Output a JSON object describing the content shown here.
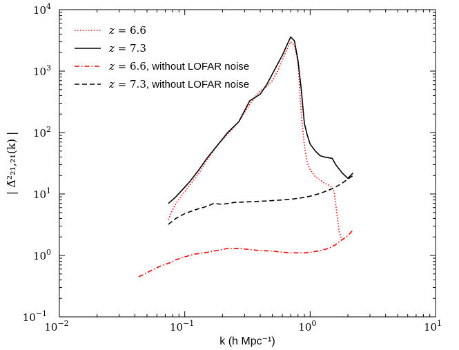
{
  "chart_data": {
    "type": "line",
    "title": "",
    "xlabel": "k (h Mpc⁻¹)",
    "ylabel": "| Δ̃²₂₁,₂₁(k) |",
    "xscale": "log",
    "yscale": "log",
    "xlim": [
      0.01,
      10
    ],
    "ylim": [
      0.1,
      10000
    ],
    "x_ticks": [
      {
        "value": 0.01,
        "label": "10⁻²"
      },
      {
        "value": 0.1,
        "label": "10⁻¹"
      },
      {
        "value": 1,
        "label": "10⁰"
      },
      {
        "value": 10,
        "label": "10¹"
      }
    ],
    "y_ticks": [
      {
        "value": 0.1,
        "label": "10⁻¹"
      },
      {
        "value": 1,
        "label": "10⁰"
      },
      {
        "value": 10,
        "label": "10¹"
      },
      {
        "value": 100,
        "label": "10²"
      },
      {
        "value": 1000,
        "label": "10³"
      },
      {
        "value": 10000,
        "label": "10⁴"
      }
    ],
    "grid": false,
    "legend_position": "top-left",
    "series": [
      {
        "name": "z = 6.6",
        "legend_math": "z = 6.6",
        "legend_suffix": "",
        "color": "#ff0000",
        "style": "dotted",
        "x": [
          0.074,
          0.078,
          0.085,
          0.095,
          0.11,
          0.13,
          0.15,
          0.18,
          0.22,
          0.27,
          0.33,
          0.4,
          0.45,
          0.5,
          0.55,
          0.6,
          0.65,
          0.7,
          0.75,
          0.8,
          0.85,
          0.9,
          0.95,
          1.0,
          1.1,
          1.2,
          1.3,
          1.4,
          1.5,
          1.55,
          1.6,
          1.65,
          1.7,
          1.8
        ],
        "y": [
          3.8,
          5.0,
          7.0,
          9.5,
          14,
          22,
          35,
          60,
          95,
          150,
          290,
          480,
          560,
          700,
          1000,
          1500,
          2200,
          3000,
          2600,
          1400,
          200,
          60,
          32,
          25,
          19,
          17,
          15,
          14,
          13,
          11,
          7,
          4,
          2.5,
          1.7
        ]
      },
      {
        "name": "z = 7.3",
        "legend_math": "z = 7.3",
        "legend_suffix": "",
        "color": "#000000",
        "style": "solid",
        "x": [
          0.074,
          0.085,
          0.095,
          0.11,
          0.13,
          0.15,
          0.18,
          0.22,
          0.27,
          0.33,
          0.4,
          0.45,
          0.5,
          0.55,
          0.6,
          0.65,
          0.7,
          0.75,
          0.8,
          0.85,
          0.9,
          0.95,
          1.0,
          1.1,
          1.2,
          1.3,
          1.5,
          1.6,
          1.8,
          2.0,
          2.2
        ],
        "y": [
          7.0,
          9.0,
          11.5,
          16,
          25,
          38,
          60,
          100,
          150,
          330,
          420,
          600,
          900,
          1300,
          1800,
          2600,
          3600,
          3100,
          1500,
          500,
          140,
          90,
          65,
          50,
          42,
          40,
          38,
          30,
          22,
          18,
          22
        ]
      },
      {
        "name": "z = 6.6, without LOFAR noise",
        "legend_math": "z = 6.6",
        "legend_suffix": ", without LOFAR noise",
        "color": "#ff0000",
        "style": "dashdot",
        "x": [
          0.043,
          0.048,
          0.055,
          0.065,
          0.075,
          0.085,
          0.1,
          0.12,
          0.15,
          0.18,
          0.22,
          0.27,
          0.33,
          0.4,
          0.5,
          0.6,
          0.7,
          0.8,
          0.9,
          1.0,
          1.2,
          1.4,
          1.6,
          1.8,
          2.0,
          2.2
        ],
        "y": [
          0.45,
          0.5,
          0.58,
          0.68,
          0.75,
          0.85,
          0.95,
          1.05,
          1.12,
          1.2,
          1.3,
          1.3,
          1.25,
          1.2,
          1.18,
          1.13,
          1.1,
          1.1,
          1.1,
          1.12,
          1.2,
          1.3,
          1.5,
          1.8,
          2.1,
          2.6
        ]
      },
      {
        "name": "z = 7.3, without LOFAR noise",
        "legend_math": "z = 7.3",
        "legend_suffix": ", without LOFAR noise",
        "color": "#000000",
        "style": "dashed",
        "x": [
          0.074,
          0.085,
          0.1,
          0.12,
          0.15,
          0.17,
          0.2,
          0.25,
          0.3,
          0.4,
          0.5,
          0.6,
          0.7,
          0.8,
          0.9,
          1.0,
          1.2,
          1.4,
          1.6,
          1.8,
          2.0,
          2.2
        ],
        "y": [
          3.2,
          4.0,
          4.8,
          5.5,
          6.3,
          7.0,
          6.8,
          7.3,
          7.4,
          7.6,
          7.8,
          8.0,
          8.2,
          8.5,
          8.8,
          9.2,
          10.2,
          11.5,
          13.0,
          15.0,
          17.5,
          20
        ]
      }
    ]
  }
}
